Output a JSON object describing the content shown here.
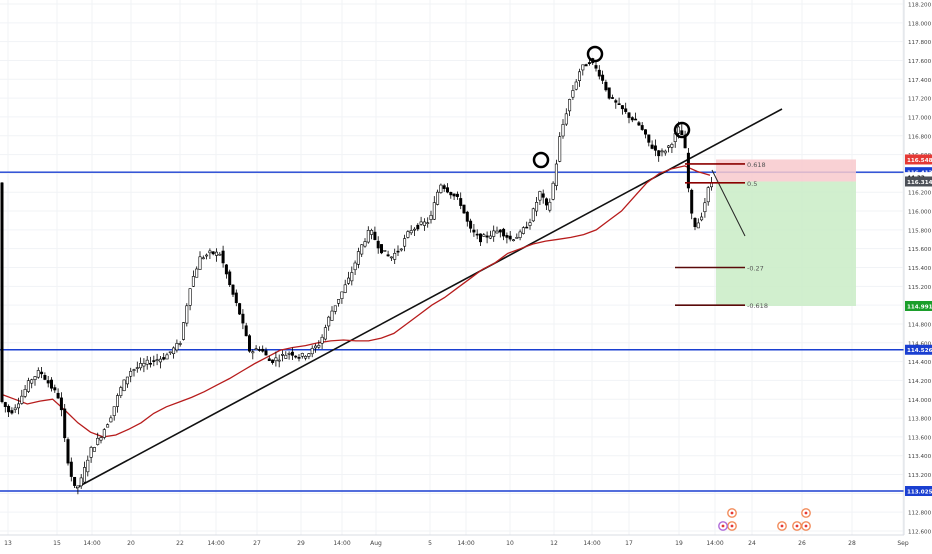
{
  "chart_data": {
    "type": "candlestick",
    "instrument_note": "",
    "y_axis": {
      "range": [
        112.6,
        118.2
      ],
      "ticks": [
        "118.200",
        "118.000",
        "117.800",
        "117.600",
        "117.400",
        "117.200",
        "117.000",
        "116.800",
        "116.600",
        "116.400",
        "116.200",
        "116.000",
        "115.800",
        "115.600",
        "115.400",
        "115.200",
        "115.000",
        "114.800",
        "114.600",
        "114.400",
        "114.200",
        "114.000",
        "113.800",
        "113.600",
        "113.400",
        "113.200",
        "113.000",
        "112.800",
        "112.600"
      ],
      "tick_values": [
        118.2,
        118.0,
        117.8,
        117.6,
        117.4,
        117.2,
        117.0,
        116.8,
        116.6,
        116.4,
        116.2,
        116.0,
        115.8,
        115.6,
        115.4,
        115.2,
        115.0,
        114.8,
        114.6,
        114.4,
        114.2,
        114.0,
        113.8,
        113.6,
        113.4,
        113.2,
        113.0,
        112.8,
        112.6
      ]
    },
    "x_axis": {
      "labels": [
        "13",
        "15",
        "14:00",
        "20",
        "22",
        "14:00",
        "27",
        "29",
        "14:00",
        "Aug",
        "5",
        "14:00",
        "10",
        "12",
        "14:00",
        "17",
        "19",
        "14:00",
        "24",
        "26",
        "28",
        "Sep"
      ]
    },
    "price_badges": [
      {
        "label": "116.548",
        "value": 116.548,
        "color": "#e53935"
      },
      {
        "label": "116.413",
        "value": 116.413,
        "color": "#1a3fd1"
      },
      {
        "label": "44:33",
        "value": 116.36,
        "color": "#ffffff",
        "text_color": "#000000"
      },
      {
        "label": "116.314",
        "value": 116.314,
        "color": "#4b4f57"
      },
      {
        "label": "114.991",
        "value": 114.991,
        "color": "#1a9e2a"
      },
      {
        "label": "114.526",
        "value": 114.526,
        "color": "#1a3fd1"
      },
      {
        "label": "113.025",
        "value": 113.025,
        "color": "#1a3fd1"
      }
    ],
    "horizontal_levels": [
      116.413,
      114.526,
      113.025
    ],
    "fib_levels": [
      {
        "label": "0.618",
        "value": 116.5
      },
      {
        "label": "0.5",
        "value": 116.3
      },
      {
        "label": "-0.27",
        "value": 115.4
      },
      {
        "label": "-0.618",
        "value": 115.0
      }
    ],
    "trade_box": {
      "entry": 116.314,
      "stop": 116.548,
      "target": 114.991
    },
    "ma_values": [
      114.05,
      114.0,
      113.95,
      113.98,
      114.0,
      113.88,
      113.75,
      113.65,
      113.6,
      113.62,
      113.68,
      113.75,
      113.85,
      113.92,
      113.97,
      114.02,
      114.08,
      114.15,
      114.22,
      114.3,
      114.38,
      114.45,
      114.52,
      114.55,
      114.57,
      114.6,
      114.62,
      114.63,
      114.62,
      114.62,
      114.65,
      114.7,
      114.8,
      114.9,
      115.0,
      115.08,
      115.18,
      115.28,
      115.38,
      115.45,
      115.55,
      115.6,
      115.65,
      115.68,
      115.7,
      115.72,
      115.75,
      115.8,
      115.9,
      116.0,
      116.15,
      116.3,
      116.4,
      116.45,
      116.48,
      116.42,
      116.38
    ],
    "colors": {
      "up": "#ffffff",
      "down": "#000000",
      "ma": "#b71c1c",
      "levels": "#1a3fd1",
      "trendline": "#111111",
      "stop_zone": "#f8c9cd",
      "target_zone": "#c9ecc6"
    }
  }
}
